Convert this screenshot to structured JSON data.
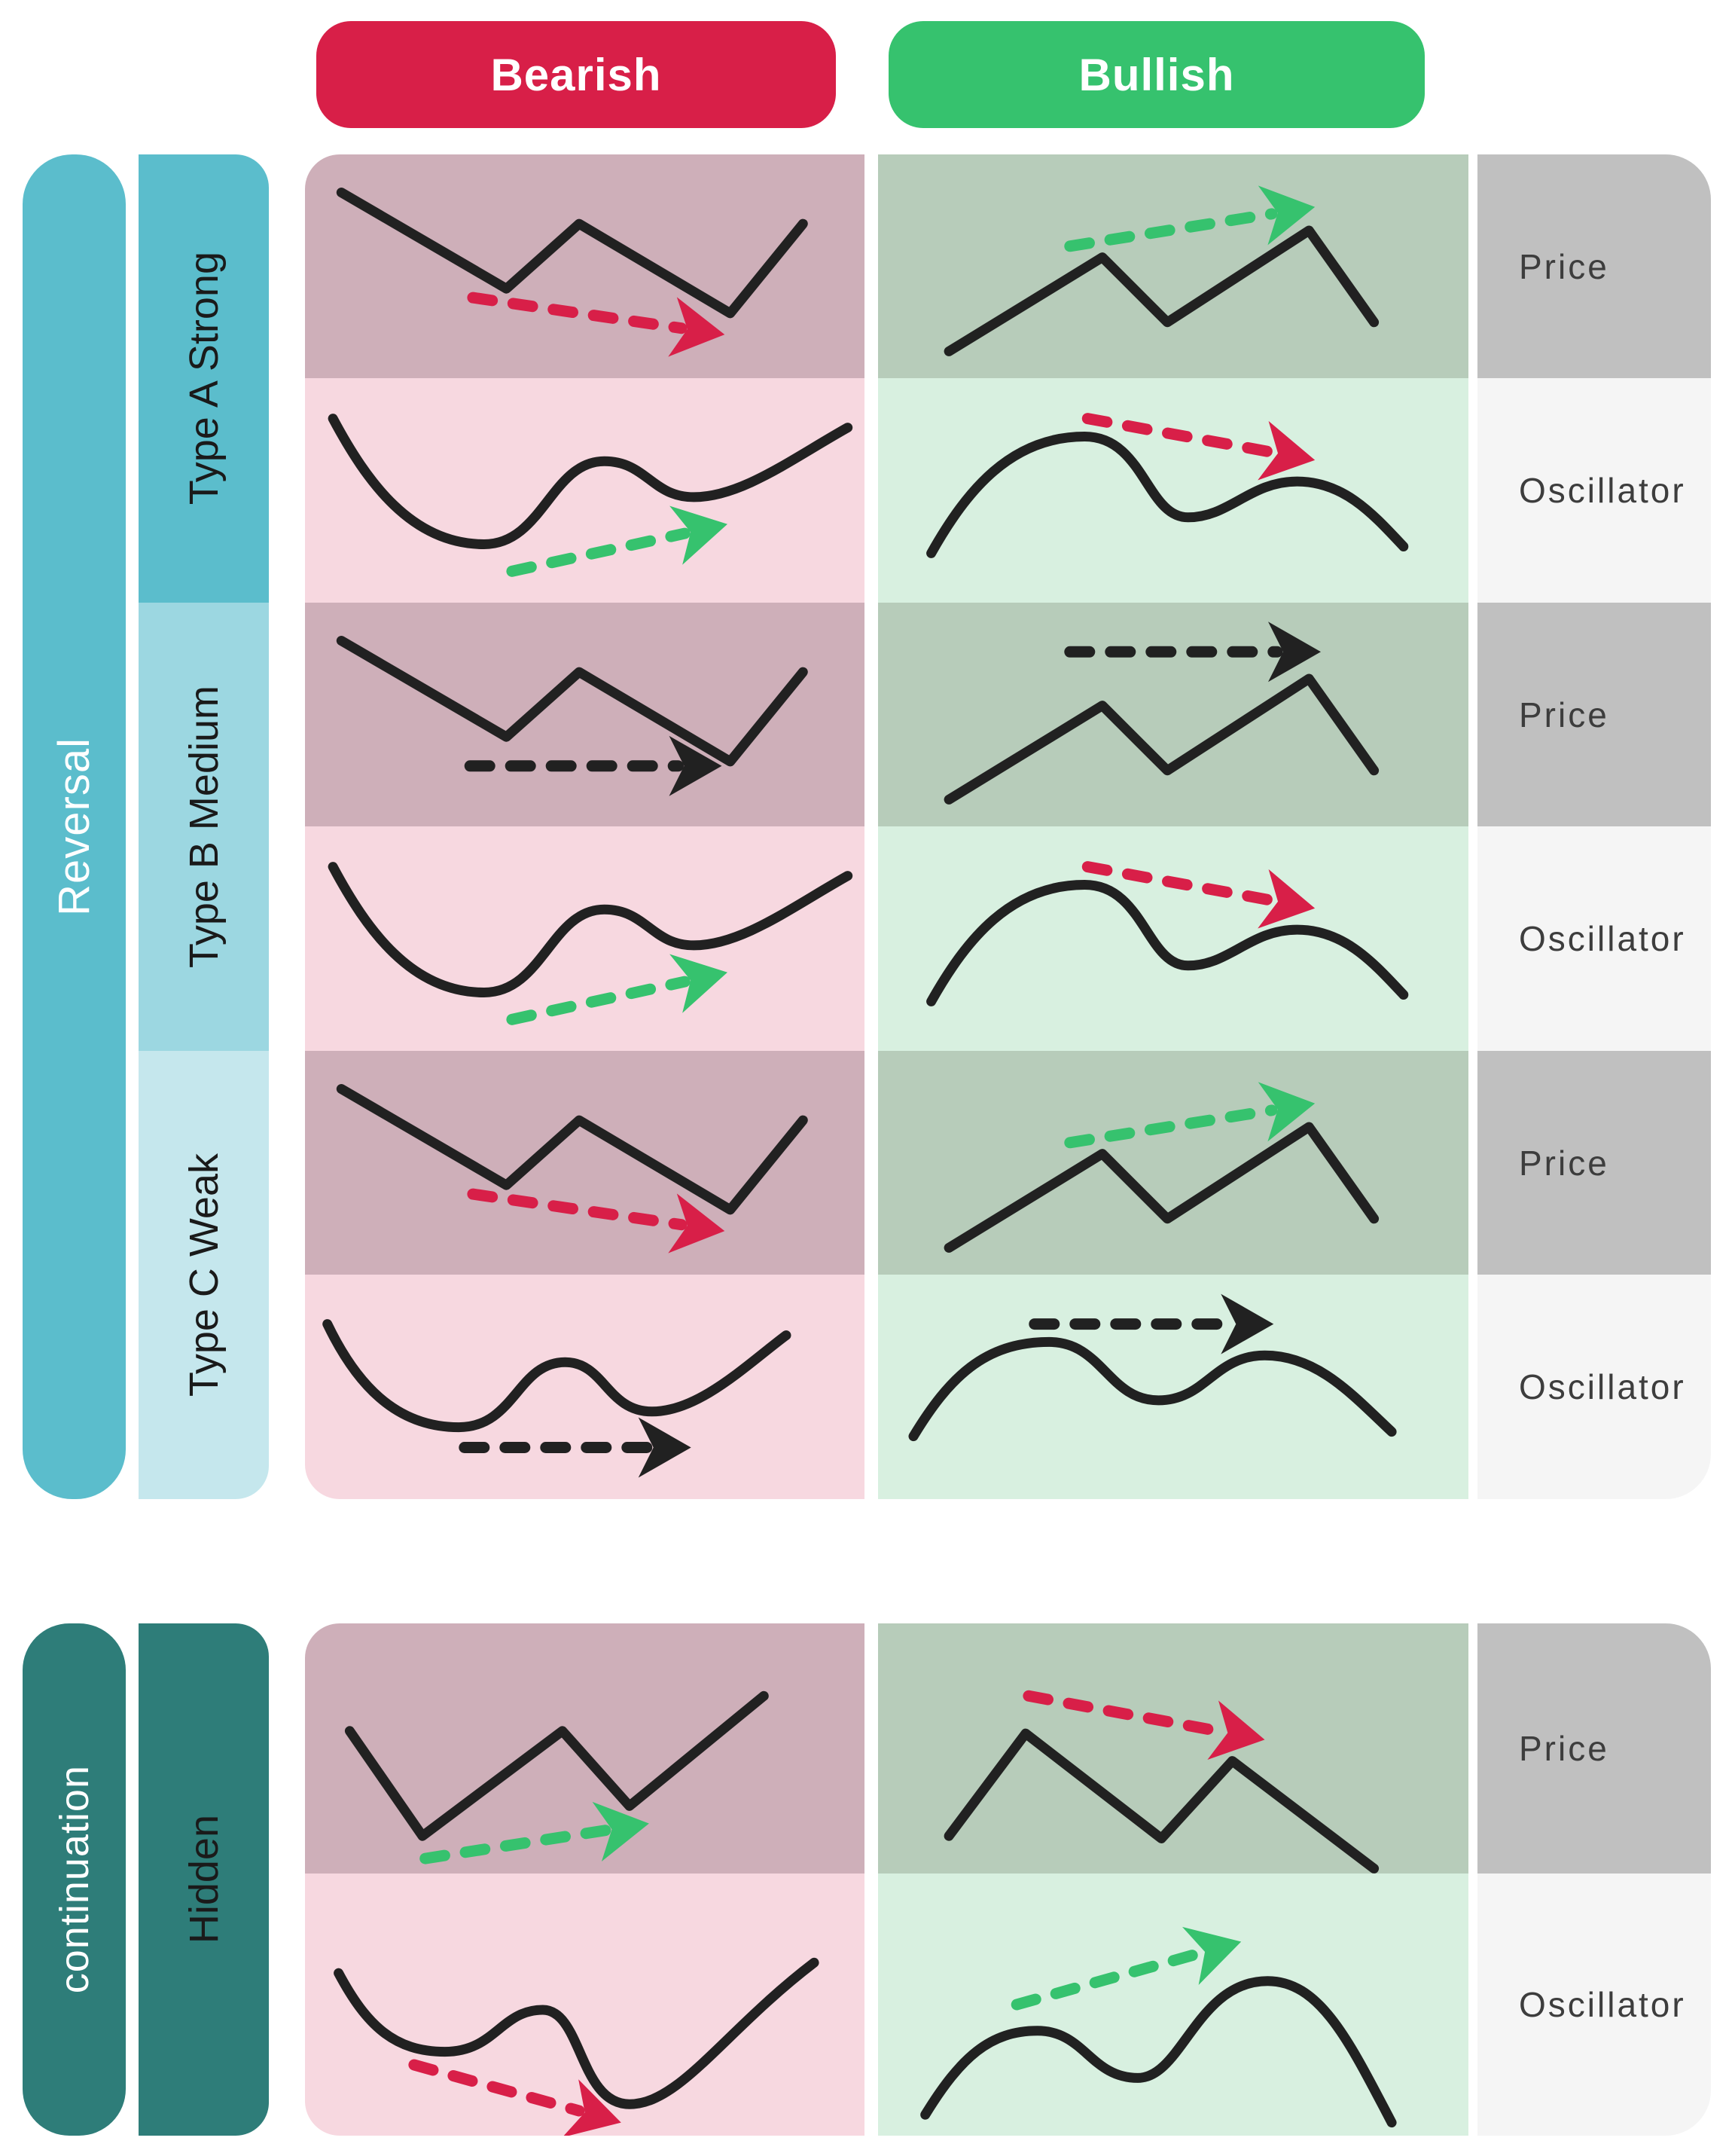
{
  "colors": {
    "bearish": "#d81f48",
    "bullish": "#36c26e",
    "line": "#212121",
    "teal": "#5bbdcc",
    "teal-medium": "#9cd7e1",
    "teal-light": "#c5e7ed",
    "teal-dark": "#2e7d79",
    "bear-price-bg": "#ceafb9",
    "bear-osc-bg": "#f7d8e0",
    "bull-price-bg": "#b7ccba",
    "bull-osc-bg": "#d8f0e0",
    "price-label-bg": "#c0c0c0",
    "osc-label-bg": "#f5f5f5"
  },
  "header": {
    "bearish": "Bearish",
    "bullish": "Bullish"
  },
  "row_labels": {
    "price": "Price",
    "oscillator": "Oscillator"
  },
  "sections": {
    "reversal": {
      "label": "Reversal",
      "groups": [
        {
          "label": "Type A Strong"
        },
        {
          "label": "Type B Medium"
        },
        {
          "label": "Type C Weak"
        }
      ]
    },
    "continuation": {
      "label": "continuation",
      "groups": [
        {
          "label": "Hidden"
        }
      ]
    }
  },
  "cells": [
    {
      "section": "reversal",
      "group": "Type A Strong",
      "column": "Bearish",
      "row": "Price",
      "pattern": "falling-zigzag",
      "divergence": "price-lower-lows",
      "line": "zigzagDown",
      "arrow": "priceBearDown",
      "arrow_color": "bearish"
    },
    {
      "section": "reversal",
      "group": "Type A Strong",
      "column": "Bullish",
      "row": "Price",
      "pattern": "rising-zigzag",
      "divergence": "price-higher-highs",
      "line": "zigzagUp",
      "arrow": "priceBullUp",
      "arrow_color": "bullish"
    },
    {
      "section": "reversal",
      "group": "Type A Strong",
      "column": "Bearish",
      "row": "Oscillator",
      "pattern": "double-bottom-wave",
      "divergence": "oscillator-higher-lows",
      "line": "waveBear",
      "arrow": "oscBearUp",
      "arrow_color": "bullish"
    },
    {
      "section": "reversal",
      "group": "Type A Strong",
      "column": "Bullish",
      "row": "Oscillator",
      "pattern": "double-top-wave",
      "divergence": "oscillator-lower-highs",
      "line": "waveBull",
      "arrow": "oscBullDown",
      "arrow_color": "bearish"
    },
    {
      "section": "reversal",
      "group": "Type B Medium",
      "column": "Bearish",
      "row": "Price",
      "pattern": "falling-zigzag",
      "divergence": "price-equal-lows",
      "line": "zigzagDown",
      "arrow": "priceBearFlat",
      "arrow_color": "line"
    },
    {
      "section": "reversal",
      "group": "Type B Medium",
      "column": "Bullish",
      "row": "Price",
      "pattern": "rising-zigzag",
      "divergence": "price-equal-highs",
      "line": "zigzagUp",
      "arrow": "priceBullFlat",
      "arrow_color": "line"
    },
    {
      "section": "reversal",
      "group": "Type B Medium",
      "column": "Bearish",
      "row": "Oscillator",
      "pattern": "double-bottom-wave",
      "divergence": "oscillator-higher-lows",
      "line": "waveBear",
      "arrow": "oscBearUp",
      "arrow_color": "bullish"
    },
    {
      "section": "reversal",
      "group": "Type B Medium",
      "column": "Bullish",
      "row": "Oscillator",
      "pattern": "double-top-wave",
      "divergence": "oscillator-lower-highs",
      "line": "waveBull",
      "arrow": "oscBullDown",
      "arrow_color": "bearish"
    },
    {
      "section": "reversal",
      "group": "Type C Weak",
      "column": "Bearish",
      "row": "Price",
      "pattern": "falling-zigzag",
      "divergence": "price-lower-lows",
      "line": "zigzagDown",
      "arrow": "priceBearDown",
      "arrow_color": "bearish"
    },
    {
      "section": "reversal",
      "group": "Type C Weak",
      "column": "Bullish",
      "row": "Price",
      "pattern": "rising-zigzag",
      "divergence": "price-higher-highs",
      "line": "zigzagUp",
      "arrow": "priceBullUp",
      "arrow_color": "bullish"
    },
    {
      "section": "reversal",
      "group": "Type C Weak",
      "column": "Bearish",
      "row": "Oscillator",
      "pattern": "double-bottom-wave",
      "divergence": "oscillator-equal-lows",
      "line": "waveBearFlat",
      "arrow": "oscBearFlat",
      "arrow_color": "line"
    },
    {
      "section": "reversal",
      "group": "Type C Weak",
      "column": "Bullish",
      "row": "Oscillator",
      "pattern": "double-top-wave",
      "divergence": "oscillator-equal-highs",
      "line": "waveBullFlat",
      "arrow": "oscBullFlat",
      "arrow_color": "line"
    },
    {
      "section": "continuation",
      "group": "Hidden",
      "column": "Bearish",
      "row": "Price",
      "pattern": "rising-zigzag",
      "divergence": "price-higher-lows",
      "line": "zigzagHiddenBear",
      "arrow": "hiddenPriceBearUp",
      "arrow_color": "bullish"
    },
    {
      "section": "continuation",
      "group": "Hidden",
      "column": "Bullish",
      "row": "Price",
      "pattern": "falling-zigzag",
      "divergence": "price-lower-highs",
      "line": "zigzagHiddenBull",
      "arrow": "hiddenPriceBullDown",
      "arrow_color": "bearish"
    },
    {
      "section": "continuation",
      "group": "Hidden",
      "column": "Bearish",
      "row": "Oscillator",
      "pattern": "double-bottom-wave",
      "divergence": "oscillator-lower-lows",
      "line": "waveHiddenBear",
      "arrow": "hiddenOscBearDown",
      "arrow_color": "bearish"
    },
    {
      "section": "continuation",
      "group": "Hidden",
      "column": "Bullish",
      "row": "Oscillator",
      "pattern": "double-top-wave",
      "divergence": "oscillator-higher-highs",
      "line": "waveHiddenBull",
      "arrow": "hiddenOscBullUp",
      "arrow_color": "bullish"
    }
  ]
}
